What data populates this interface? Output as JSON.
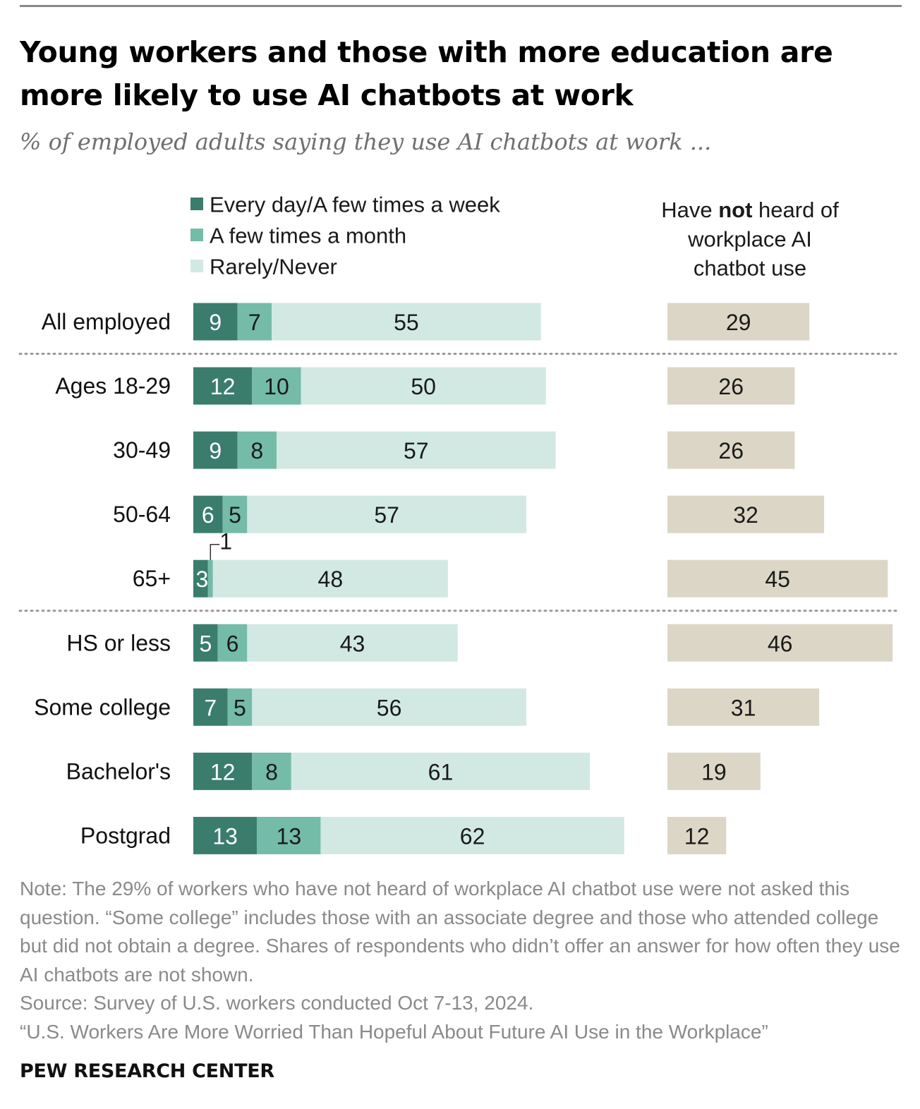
{
  "title": "Young workers and those with more education are more likely to use AI chatbots at work",
  "subtitle": "% of employed adults saying they use AI chatbots at work ...",
  "colors": {
    "every_day": "#3a7d6c",
    "few_month": "#74bba8",
    "rarely": "#d1e9e2",
    "not_heard": "#dbd6c6",
    "text_on_dark": "#ffffff",
    "text_on_light": "#1a1a1a",
    "note_text": "#8a8a8a"
  },
  "chart_data": {
    "type": "bar",
    "orientation": "horizontal",
    "stacked": true,
    "categories": [
      "All employed",
      "Ages 18-29",
      "30-49",
      "50-64",
      "65+",
      "HS or less",
      "Some college",
      "Bachelor's",
      "Postgrad"
    ],
    "series": [
      {
        "name": "Every day/A few times a week",
        "values": [
          9,
          12,
          9,
          6,
          3,
          5,
          7,
          12,
          13
        ]
      },
      {
        "name": "A few times a month",
        "values": [
          7,
          10,
          8,
          5,
          1,
          6,
          5,
          8,
          13
        ]
      },
      {
        "name": "Rarely/Never",
        "values": [
          55,
          50,
          57,
          57,
          48,
          43,
          56,
          61,
          62
        ]
      }
    ],
    "separate_column": {
      "header_parts": [
        "Have ",
        "not",
        " heard of",
        "workplace AI",
        "chatbot use"
      ],
      "values": [
        29,
        26,
        26,
        32,
        45,
        46,
        31,
        19,
        12
      ]
    },
    "group_separators_after": [
      "All employed",
      "65+"
    ],
    "callouts": [
      {
        "category": "65+",
        "series": "A few times a month",
        "text": "1"
      }
    ],
    "legend_position": "top"
  },
  "note": "Note: The 29% of workers who have not heard of workplace AI chatbot use were not asked this question. “Some college” includes those with an associate degree and those who attended college but did not obtain a degree. Shares of respondents who didn’t offer an answer for how often they use AI chatbots are not shown.",
  "source": "Source: Survey of U.S. workers conducted Oct 7-13, 2024.",
  "report": "“U.S. Workers Are More Worried Than Hopeful About Future AI Use in the Workplace”",
  "brand": "PEW RESEARCH CENTER"
}
